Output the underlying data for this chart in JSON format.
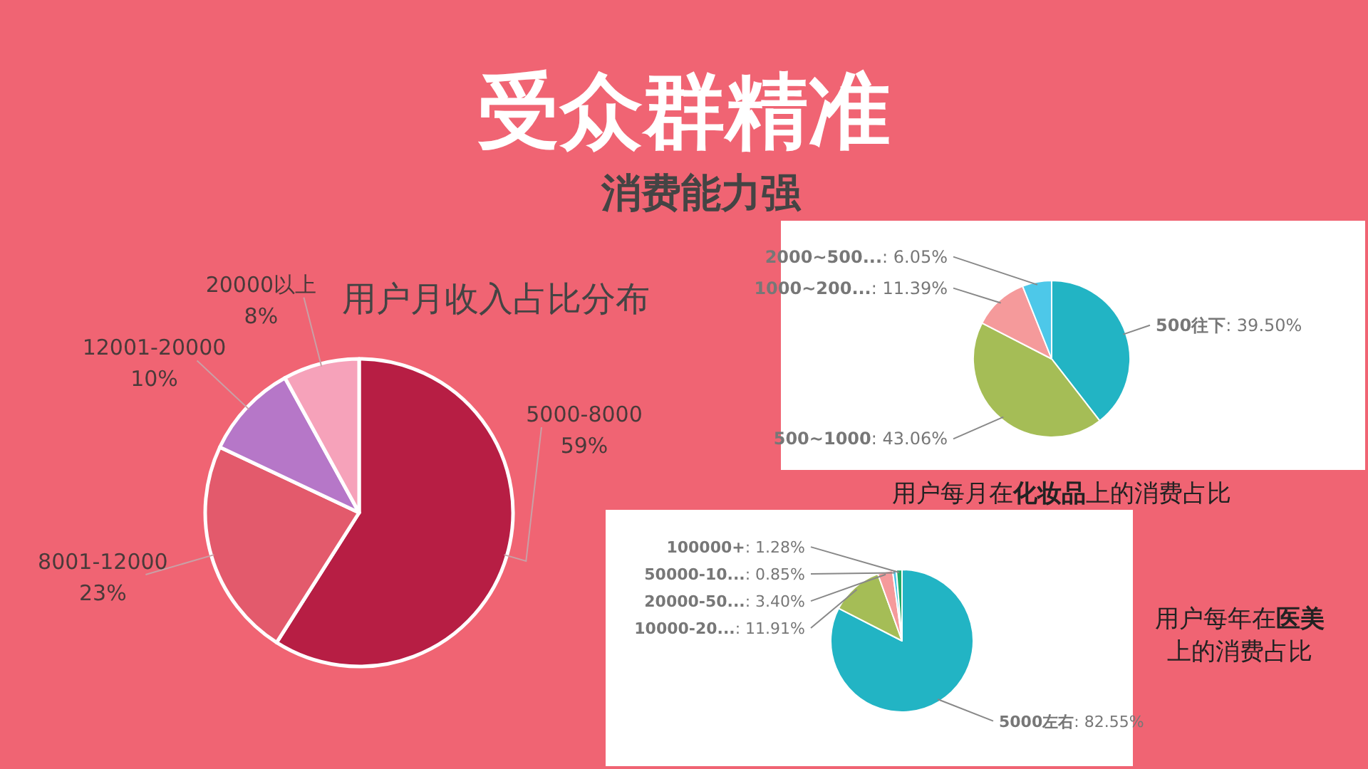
{
  "chart_data": [
    {
      "type": "pie",
      "title": "用户月收入占比分布",
      "annotations": [
        "受众群精准",
        "消费能力强"
      ],
      "categories": [
        "5000-8000",
        "8001-12000",
        "12001-20000",
        "20000以上"
      ],
      "values": [
        59,
        23,
        10,
        8
      ],
      "colors": [
        "#b71e44",
        "#e35a6c",
        "#b677c8",
        "#f6a2ba"
      ],
      "value_labels": [
        "59%",
        "23%",
        "10%",
        "8%"
      ]
    },
    {
      "type": "pie",
      "title": "用户每月在**化妆品**上的消费占比",
      "categories": [
        "500往下",
        "500~1000",
        "1000~200...",
        "2000~500..."
      ],
      "values": [
        39.5,
        43.06,
        11.39,
        6.05
      ],
      "colors": [
        "#22b4c4",
        "#a5bd56",
        "#f59a9b",
        "#4dc8e9"
      ],
      "value_labels": [
        ": 39.50%",
        ": 43.06%",
        ": 11.39%",
        ": 6.05%"
      ]
    },
    {
      "type": "pie",
      "title": "用户每年在**医美**上的消费占比",
      "categories": [
        "5000左右",
        "10000-20...",
        "20000-50...",
        "50000-10...",
        "100000+"
      ],
      "values": [
        82.55,
        11.91,
        3.4,
        0.85,
        1.28
      ],
      "colors": [
        "#22b4c4",
        "#a5bd56",
        "#f59a9b",
        "#4dc8e9",
        "#1faa6a"
      ],
      "value_labels": [
        ": 82.55%",
        ": 11.91%",
        ": 3.40%",
        ": 0.85%",
        ": 1.28%"
      ]
    }
  ]
}
